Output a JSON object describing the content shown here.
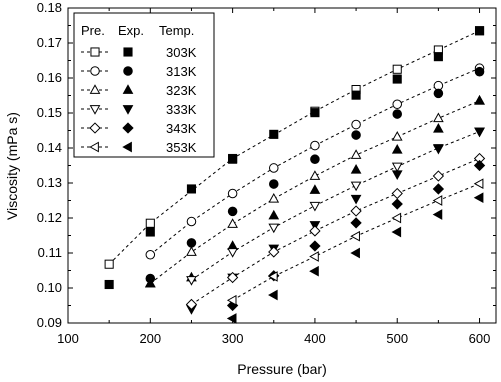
{
  "chart_data": {
    "type": "scatter",
    "xlabel": "Pressure (bar)",
    "ylabel": "Viscosity (mPa s)",
    "xlim": [
      100,
      620
    ],
    "ylim": [
      0.09,
      0.18
    ],
    "x_ticks": [
      100,
      200,
      300,
      400,
      500,
      600
    ],
    "y_ticks": [
      0.09,
      0.1,
      0.11,
      0.12,
      0.13,
      0.14,
      0.15,
      0.16,
      0.17,
      0.18
    ],
    "grid": false,
    "legend_position": "top-left",
    "legend_headers": [
      "Pre.",
      "Exp.",
      "Temp."
    ],
    "series": [
      {
        "name": "303K",
        "predicted_marker": "square-open",
        "experimental_marker": "square-filled",
        "predicted": {
          "x": [
            150,
            200,
            300,
            400,
            450,
            500,
            550,
            600
          ],
          "y": [
            0.1068,
            0.1185,
            0.137,
            0.1505,
            0.1567,
            0.1625,
            0.168,
            0.1735
          ]
        },
        "experimental": {
          "x": [
            150,
            200,
            250,
            300,
            350,
            400,
            450,
            500,
            550,
            600
          ],
          "y": [
            0.101,
            0.116,
            0.1283,
            0.1368,
            0.1439,
            0.1501,
            0.1551,
            0.1597,
            0.1661,
            0.1735
          ]
        }
      },
      {
        "name": "313K",
        "predicted_marker": "circle-open",
        "experimental_marker": "circle-filled",
        "predicted": {
          "x": [
            200,
            250,
            300,
            350,
            400,
            450,
            500,
            550,
            600
          ],
          "y": [
            0.1095,
            0.119,
            0.127,
            0.1343,
            0.1407,
            0.1467,
            0.1525,
            0.1578,
            0.1628
          ]
        },
        "experimental": {
          "x": [
            200,
            250,
            300,
            350,
            400,
            450,
            500,
            550,
            600
          ],
          "y": [
            0.1027,
            0.1129,
            0.1219,
            0.1297,
            0.1368,
            0.1437,
            0.1497,
            0.1556,
            0.1618
          ]
        }
      },
      {
        "name": "323K",
        "predicted_marker": "triangle-up-open",
        "experimental_marker": "triangle-up-filled",
        "predicted": {
          "x": [
            200,
            250,
            300,
            350,
            400,
            450,
            500,
            550,
            600
          ],
          "y": [
            0.1013,
            0.1103,
            0.1183,
            0.1255,
            0.132,
            0.138,
            0.1432,
            0.1485,
            0.1535
          ]
        },
        "experimental": {
          "x": [
            200,
            250,
            300,
            350,
            400,
            450,
            500,
            550,
            600
          ],
          "y": [
            0.1013,
            0.103,
            0.112,
            0.1207,
            0.128,
            0.1338,
            0.1395,
            0.1455,
            0.1535
          ]
        }
      },
      {
        "name": "333K",
        "predicted_marker": "triangle-down-open",
        "experimental_marker": "triangle-down-filled",
        "predicted": {
          "x": [
            250,
            300,
            350,
            400,
            450,
            500,
            550,
            600
          ],
          "y": [
            0.1023,
            0.1103,
            0.1173,
            0.1235,
            0.1293,
            0.1347,
            0.14,
            0.1447
          ]
        },
        "experimental": {
          "x": [
            250,
            300,
            350,
            400,
            450,
            500,
            550,
            600
          ],
          "y": [
            0.094,
            0.103,
            0.1113,
            0.118,
            0.1255,
            0.1325,
            0.1398,
            0.1447
          ]
        }
      },
      {
        "name": "343K",
        "predicted_marker": "diamond-open",
        "experimental_marker": "diamond-filled",
        "predicted": {
          "x": [
            250,
            300,
            350,
            400,
            450,
            500,
            550,
            600
          ],
          "y": [
            0.0953,
            0.103,
            0.1103,
            0.1163,
            0.122,
            0.127,
            0.132,
            0.137
          ]
        },
        "experimental": {
          "x": [
            300,
            350,
            400,
            450,
            500,
            550,
            600
          ],
          "y": [
            0.095,
            0.1035,
            0.112,
            0.1186,
            0.124,
            0.1283,
            0.135
          ]
        }
      },
      {
        "name": "353K",
        "predicted_marker": "triangle-left-open",
        "experimental_marker": "triangle-left-filled",
        "predicted": {
          "x": [
            300,
            350,
            400,
            450,
            500,
            550,
            600
          ],
          "y": [
            0.0965,
            0.1033,
            0.109,
            0.1148,
            0.12,
            0.125,
            0.1298
          ]
        },
        "experimental": {
          "x": [
            300,
            350,
            400,
            450,
            500,
            550,
            600
          ],
          "y": [
            0.0913,
            0.098,
            0.1048,
            0.11,
            0.116,
            0.121,
            0.1258
          ]
        }
      }
    ]
  }
}
